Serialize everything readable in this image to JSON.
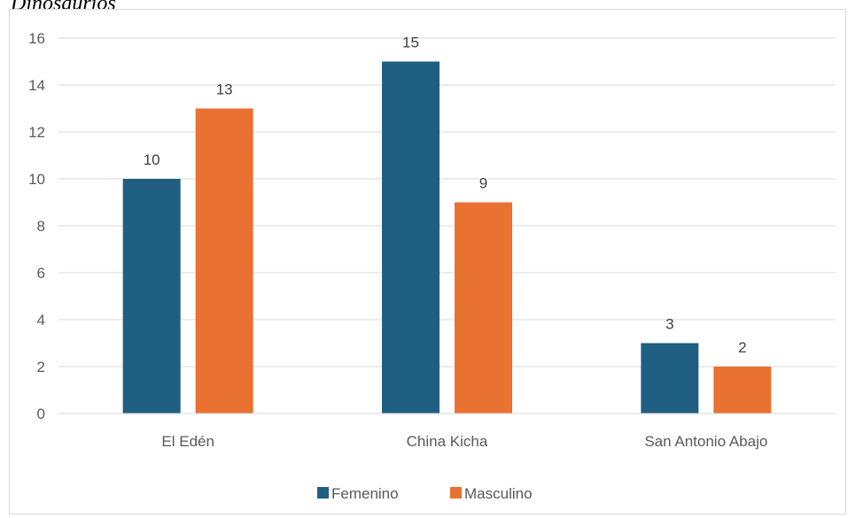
{
  "caption": "Dinosaurios",
  "chart_data": {
    "type": "bar",
    "title": "",
    "xlabel": "",
    "ylabel": "",
    "categories": [
      "El Edén",
      "China Kicha",
      "San Antonio Abajo"
    ],
    "series": [
      {
        "name": "Femenino",
        "values": [
          10,
          15,
          3
        ],
        "color": "#1f5f82"
      },
      {
        "name": "Masculino",
        "values": [
          13,
          9,
          2
        ],
        "color": "#e97132"
      }
    ],
    "ylim": [
      0,
      16
    ],
    "yticks": [
      0,
      2,
      4,
      6,
      8,
      10,
      12,
      14,
      16
    ],
    "grid": true,
    "data_labels": true,
    "legend_position": "bottom"
  }
}
